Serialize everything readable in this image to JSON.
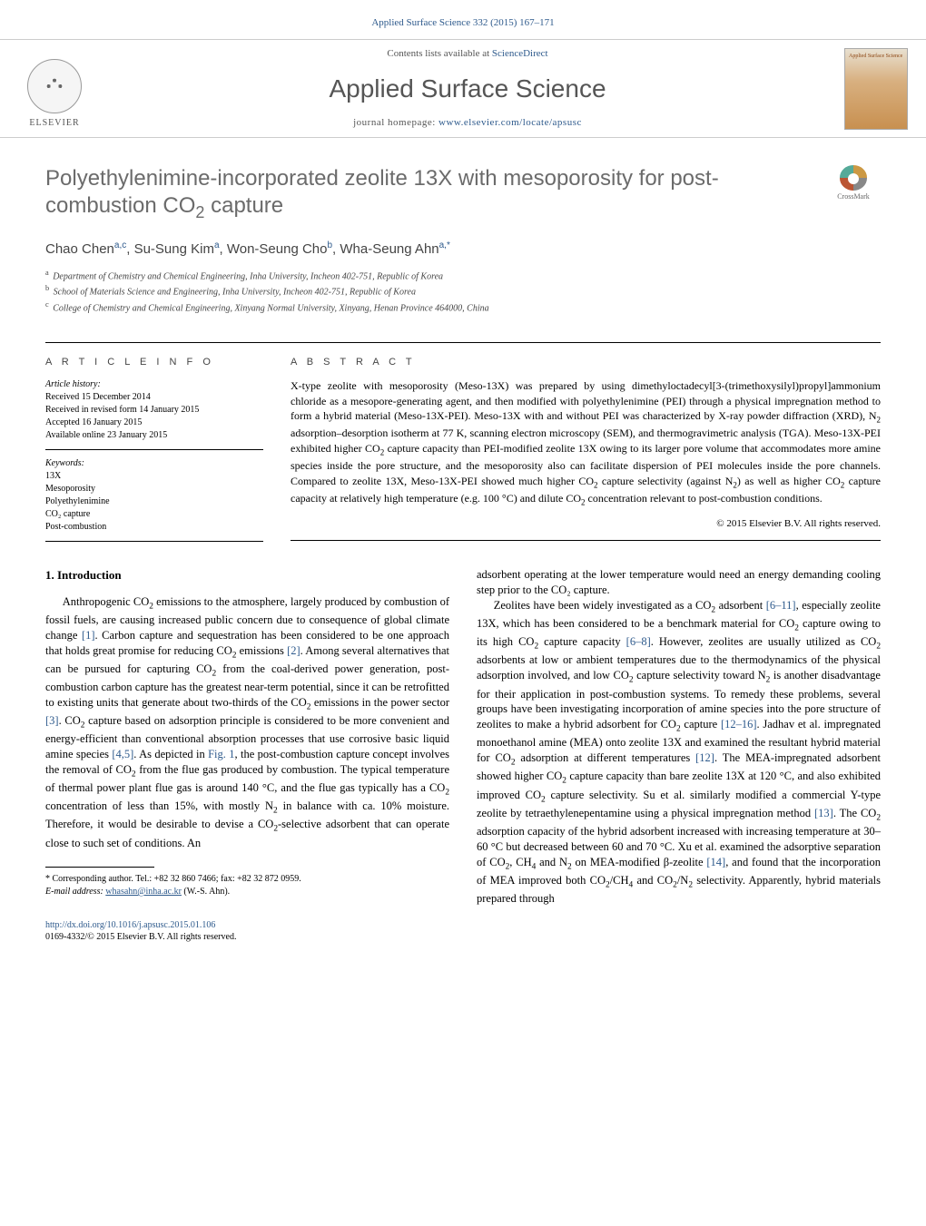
{
  "header_ref": "Applied Surface Science 332 (2015) 167–171",
  "masthead": {
    "elsevier_label": "ELSEVIER",
    "contents_prefix": "Contents lists available at ",
    "contents_link": "ScienceDirect",
    "journal_title": "Applied Surface Science",
    "homepage_prefix": "journal homepage: ",
    "homepage_link": "www.elsevier.com/locate/apsusc",
    "cover_text": "Applied Surface Science"
  },
  "article": {
    "title_html": "Polyethylenimine-incorporated zeolite 13X with mesoporosity for post-combustion CO<sub>2</sub> capture",
    "crossmark_label": "CrossMark",
    "authors_html": "Chao Chen<sup>a,c</sup>, Su-Sung Kim<sup>a</sup>, Won-Seung Cho<sup>b</sup>, Wha-Seung Ahn<sup>a,*</sup>",
    "affiliations": [
      {
        "sup": "a",
        "text": "Department of Chemistry and Chemical Engineering, Inha University, Incheon 402-751, Republic of Korea"
      },
      {
        "sup": "b",
        "text": "School of Materials Science and Engineering, Inha University, Incheon 402-751, Republic of Korea"
      },
      {
        "sup": "c",
        "text": "College of Chemistry and Chemical Engineering, Xinyang Normal University, Xinyang, Henan Province 464000, China"
      }
    ]
  },
  "article_info": {
    "head": "A R T I C L E   I N F O",
    "history_title": "Article history:",
    "history": [
      "Received 15 December 2014",
      "Received in revised form 14 January 2015",
      "Accepted 16 January 2015",
      "Available online 23 January 2015"
    ],
    "keywords_title": "Keywords:",
    "keywords": [
      "13X",
      "Mesoporosity",
      "Polyethylenimine",
      "CO₂ capture",
      "Post-combustion"
    ]
  },
  "abstract": {
    "head": "A B S T R A C T",
    "text_html": "X-type zeolite with mesoporosity (Meso-13X) was prepared by using dimethyloctadecyl[3-(trimethoxysilyl)propyl]ammonium chloride as a mesopore-generating agent, and then modified with polyethylenimine (PEI) through a physical impregnation method to form a hybrid material (Meso-13X-PEI). Meso-13X with and without PEI was characterized by X-ray powder diffraction (XRD), N<sub>2</sub> adsorption–desorption isotherm at 77 K, scanning electron microscopy (SEM), and thermogravimetric analysis (TGA). Meso-13X-PEI exhibited higher CO<sub>2</sub> capture capacity than PEI-modified zeolite 13X owing to its larger pore volume that accommodates more amine species inside the pore structure, and the mesoporosity also can facilitate dispersion of PEI molecules inside the pore channels. Compared to zeolite 13X, Meso-13X-PEI showed much higher CO<sub>2</sub> capture selectivity (against N<sub>2</sub>) as well as higher CO<sub>2</sub> capture capacity at relatively high temperature (e.g. 100 °C) and dilute CO<sub>2</sub> concentration relevant to post-combustion conditions.",
    "copyright": "© 2015 Elsevier B.V. All rights reserved."
  },
  "body": {
    "section_title": "1. Introduction",
    "left_html": "Anthropogenic CO<sub>2</sub> emissions to the atmosphere, largely produced by combustion of fossil fuels, are causing increased public concern due to consequence of global climate change <span class='ref-link'>[1]</span>. Carbon capture and sequestration has been considered to be one approach that holds great promise for reducing CO<sub>2</sub> emissions <span class='ref-link'>[2]</span>. Among several alternatives that can be pursued for capturing CO<sub>2</sub> from the coal-derived power generation, post-combustion carbon capture has the greatest near-term potential, since it can be retrofitted to existing units that generate about two-thirds of the CO<sub>2</sub> emissions in the power sector <span class='ref-link'>[3]</span>. CO<sub>2</sub> capture based on adsorption principle is considered to be more convenient and energy-efficient than conventional absorption processes that use corrosive basic liquid amine species <span class='ref-link'>[4,5]</span>. As depicted in <span class='ref-link'>Fig. 1</span>, the post-combustion capture concept involves the removal of CO<sub>2</sub> from the flue gas produced by combustion. The typical temperature of thermal power plant flue gas is around 140 °C, and the flue gas typically has a CO<sub>2</sub> concentration of less than 15%, with mostly N<sub>2</sub> in balance with ca. 10% moisture. Therefore, it would be desirable to devise a CO<sub>2</sub>-selective adsorbent that can operate close to such set of conditions. An",
    "right_first": "adsorbent operating at the lower temperature would need an energy demanding cooling step prior to the CO₂ capture.",
    "right_html": "Zeolites have been widely investigated as a CO<sub>2</sub> adsorbent <span class='ref-link'>[6–11]</span>, especially zeolite 13X, which has been considered to be a benchmark material for CO<sub>2</sub> capture owing to its high CO<sub>2</sub> capture capacity <span class='ref-link'>[6–8]</span>. However, zeolites are usually utilized as CO<sub>2</sub> adsorbents at low or ambient temperatures due to the thermodynamics of the physical adsorption involved, and low CO<sub>2</sub> capture selectivity toward N<sub>2</sub> is another disadvantage for their application in post-combustion systems. To remedy these problems, several groups have been investigating incorporation of amine species into the pore structure of zeolites to make a hybrid adsorbent for CO<sub>2</sub> capture <span class='ref-link'>[12–16]</span>. Jadhav et al. impregnated monoethanol amine (MEA) onto zeolite 13X and examined the resultant hybrid material for CO<sub>2</sub> adsorption at different temperatures <span class='ref-link'>[12]</span>. The MEA-impregnated adsorbent showed higher CO<sub>2</sub> capture capacity than bare zeolite 13X at 120 °C, and also exhibited improved CO<sub>2</sub> capture selectivity. Su et al. similarly modified a commercial Y-type zeolite by tetraethylenepentamine using a physical impregnation method <span class='ref-link'>[13]</span>. The CO<sub>2</sub> adsorption capacity of the hybrid adsorbent increased with increasing temperature at 30–60 °C but decreased between 60 and 70 °C. Xu et al. examined the adsorptive separation of CO<sub>2</sub>, CH<sub>4</sub> and N<sub>2</sub> on MEA-modified β-zeolite <span class='ref-link'>[14]</span>, and found that the incorporation of MEA improved both CO<sub>2</sub>/CH<sub>4</sub> and CO<sub>2</sub>/N<sub>2</sub> selectivity. Apparently, hybrid materials prepared through"
  },
  "footnotes": {
    "corr": "* Corresponding author. Tel.: +82 32 860 7466; fax: +82 32 872 0959.",
    "email_label": "E-mail address: ",
    "email": "whasahn@inha.ac.kr",
    "email_suffix": " (W.-S. Ahn)."
  },
  "doi": "http://dx.doi.org/10.1016/j.apsusc.2015.01.106",
  "issn": "0169-4332/© 2015 Elsevier B.V. All rights reserved.",
  "colors": {
    "link": "#2e5a8c",
    "title_gray": "#6b6b6b",
    "text": "#000000"
  }
}
